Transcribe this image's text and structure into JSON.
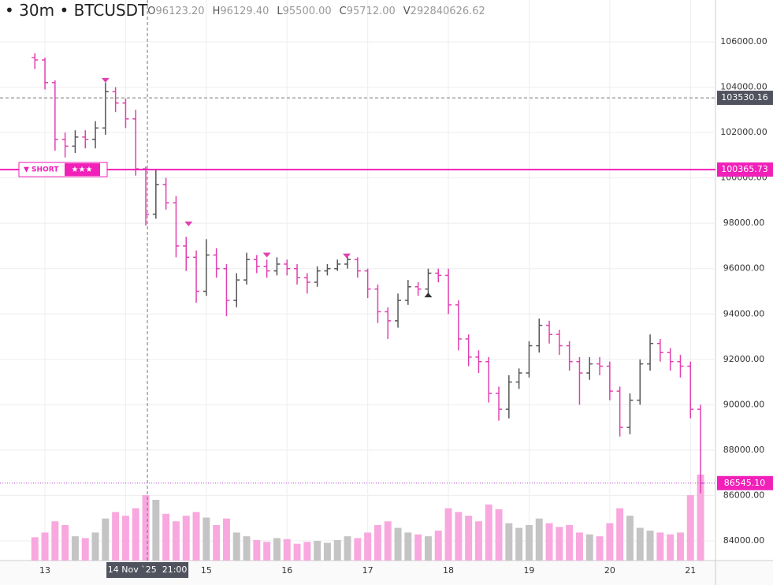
{
  "chart_data": {
    "type": "ohlc",
    "header": {
      "bullet": "•",
      "interval": "30m",
      "symbol": "BTCUSDT",
      "fields": [
        {
          "key": "O",
          "value": "96123.20"
        },
        {
          "key": "H",
          "value": "96129.40"
        },
        {
          "key": "L",
          "value": "95500.00"
        },
        {
          "key": "C",
          "value": "95712.00"
        },
        {
          "key": "V",
          "value": "292840626.62"
        }
      ]
    },
    "x": [
      12.875,
      13,
      13.125,
      13.25,
      13.375,
      13.5,
      13.625,
      13.75,
      13.875,
      14,
      14.125,
      14.25,
      14.375,
      14.5,
      14.625,
      14.75,
      14.875,
      15,
      15.125,
      15.25,
      15.375,
      15.5,
      15.625,
      15.75,
      15.875,
      16,
      16.125,
      16.25,
      16.375,
      16.5,
      16.625,
      16.75,
      16.875,
      17,
      17.125,
      17.25,
      17.375,
      17.5,
      17.625,
      17.75,
      17.875,
      18,
      18.125,
      18.25,
      18.375,
      18.5,
      18.625,
      18.75,
      18.875,
      19,
      19.125,
      19.25,
      19.375,
      19.5,
      19.625,
      19.75,
      19.875,
      20,
      20.125,
      20.25,
      20.375,
      20.5,
      20.625,
      20.75,
      20.875,
      21,
      21.125
    ],
    "open": [
      105300,
      105200,
      104200,
      101700,
      101400,
      101800,
      101700,
      102200,
      103800,
      103300,
      102600,
      100400,
      98400,
      99700,
      98900,
      97000,
      96500,
      95000,
      96600,
      96000,
      94600,
      95500,
      96400,
      96100,
      95900,
      96200,
      96000,
      95600,
      95400,
      95900,
      96000,
      96200,
      96400,
      95900,
      95100,
      94100,
      93700,
      94600,
      95200,
      95100,
      95800,
      95700,
      94400,
      92900,
      92100,
      91900,
      90500,
      89800,
      91000,
      91400,
      92600,
      93500,
      93100,
      92600,
      91900,
      91400,
      91800,
      91700,
      90600,
      89000,
      90200,
      91800,
      92700,
      92300,
      91900,
      91700,
      89800
    ],
    "high": [
      105500,
      105300,
      104300,
      102000,
      102100,
      102100,
      102500,
      104200,
      104000,
      103500,
      103000,
      100500,
      100400,
      100000,
      99200,
      97400,
      96800,
      97300,
      96900,
      96200,
      95800,
      96700,
      96600,
      96400,
      96500,
      96400,
      96200,
      95800,
      96100,
      96200,
      96400,
      96600,
      96500,
      96000,
      95300,
      94300,
      94900,
      95500,
      95400,
      96000,
      96000,
      96000,
      94600,
      93100,
      92400,
      92100,
      90800,
      91300,
      91600,
      92800,
      93800,
      93700,
      93300,
      92800,
      92100,
      92100,
      92100,
      91900,
      90800,
      90500,
      92000,
      93100,
      92900,
      92500,
      92200,
      91900,
      90000
    ],
    "low": [
      104800,
      103900,
      101200,
      100900,
      101100,
      101300,
      101300,
      101900,
      102900,
      102200,
      100100,
      97900,
      98200,
      98600,
      96500,
      95900,
      94500,
      94800,
      95600,
      93900,
      94300,
      95300,
      95800,
      95600,
      95700,
      95700,
      95300,
      94900,
      95200,
      95700,
      95900,
      96000,
      95600,
      94700,
      93600,
      92900,
      93400,
      94400,
      94800,
      94900,
      95400,
      94000,
      92400,
      91700,
      91400,
      90100,
      89300,
      89400,
      90700,
      91200,
      92300,
      92700,
      92200,
      91500,
      90000,
      91100,
      91300,
      90200,
      88600,
      88700,
      90000,
      91500,
      91900,
      91500,
      91200,
      89400,
      86100
    ],
    "close": [
      105200,
      104200,
      101700,
      101400,
      101800,
      101700,
      102200,
      103800,
      103300,
      102600,
      100400,
      98400,
      99700,
      98900,
      97000,
      96500,
      95000,
      96600,
      96000,
      94600,
      95500,
      96400,
      96100,
      95900,
      96200,
      96000,
      95600,
      95400,
      95900,
      96000,
      96200,
      96400,
      95900,
      95100,
      94100,
      93700,
      94600,
      95200,
      95100,
      95800,
      95700,
      94400,
      92900,
      92100,
      91900,
      90500,
      89800,
      91000,
      91400,
      92600,
      93500,
      93100,
      92600,
      91900,
      91400,
      91800,
      91700,
      90600,
      89000,
      90200,
      91800,
      92700,
      92300,
      91900,
      91700,
      89800,
      86545.1
    ],
    "volume": [
      250,
      300,
      420,
      380,
      260,
      240,
      300,
      450,
      520,
      480,
      560,
      700,
      650,
      500,
      420,
      480,
      520,
      460,
      380,
      450,
      300,
      260,
      220,
      200,
      240,
      230,
      180,
      200,
      210,
      190,
      220,
      260,
      240,
      300,
      380,
      420,
      350,
      300,
      280,
      260,
      320,
      560,
      520,
      480,
      420,
      600,
      550,
      400,
      350,
      380,
      450,
      400,
      360,
      380,
      300,
      280,
      260,
      400,
      560,
      480,
      350,
      320,
      300,
      280,
      300,
      700,
      920
    ],
    "up_color": "#555555",
    "down_color": "#e040b0",
    "volume_up_color": "#c4c4c4",
    "volume_down_color": "#f8a8de",
    "xlim": [
      12.443,
      21.31
    ],
    "xticks": [
      13,
      14,
      15,
      16,
      17,
      18,
      19,
      20,
      21
    ],
    "ylim": [
      83131,
      107842
    ],
    "yticks": [
      {
        "value": 84000,
        "label": "84000.00"
      },
      {
        "value": 86000,
        "label": "86000.00"
      },
      {
        "value": 88000,
        "label": "88000.00"
      },
      {
        "value": 90000,
        "label": "90000.00"
      },
      {
        "value": 92000,
        "label": "92000.00"
      },
      {
        "value": 94000,
        "label": "94000.00"
      },
      {
        "value": 96000,
        "label": "96000.00"
      },
      {
        "value": 98000,
        "label": "98000.00"
      },
      {
        "value": 100000,
        "label": "100000.00"
      },
      {
        "value": 102000,
        "label": "102000.00"
      },
      {
        "value": 104000,
        "label": "104000.00"
      },
      {
        "value": 106000,
        "label": "106000.00"
      }
    ],
    "y2lim": [
      0,
      6000
    ],
    "grid": true,
    "markers": [
      {
        "x": 13.75,
        "y": 104300,
        "direction": "down"
      },
      {
        "x": 14.78,
        "y": 97970,
        "direction": "down"
      },
      {
        "x": 15.75,
        "y": 96600,
        "direction": "down"
      },
      {
        "x": 16.74,
        "y": 96560,
        "direction": "down"
      },
      {
        "x": 17.75,
        "y": 94840,
        "direction": "up"
      }
    ],
    "crosshair": {
      "x": 14.27,
      "y": 103530.16,
      "x_label": "14 Nov `25  21:00"
    },
    "signal": {
      "y": 100365.73,
      "label": "▼ SHORT",
      "rating": "★★★"
    },
    "last_price": {
      "value": 86545.1,
      "label": "86545.10"
    }
  }
}
